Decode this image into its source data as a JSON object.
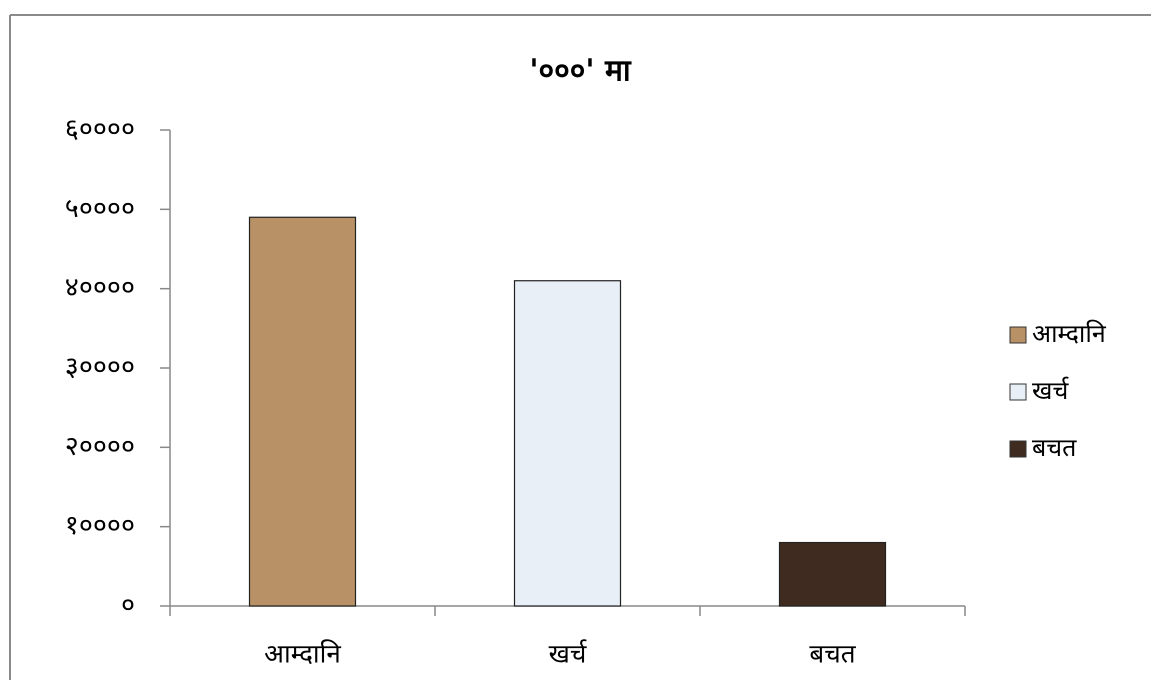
{
  "chart_data": {
    "type": "bar",
    "title": "'०००' मा",
    "categories": [
      "आम्दानि",
      "खर्च",
      "बचत"
    ],
    "series": [
      {
        "name": "आम्दानि",
        "color": "#b89266",
        "values": [
          49000,
          null,
          null
        ]
      },
      {
        "name": "खर्च",
        "color": "#e9eff6",
        "values": [
          null,
          41000,
          null
        ]
      },
      {
        "name": "बचत",
        "color": "#3f2b1f",
        "values": [
          null,
          null,
          8000
        ]
      }
    ],
    "ylim": [
      0,
      60000
    ],
    "yticks": [
      {
        "value": 0,
        "label": "०"
      },
      {
        "value": 10000,
        "label": "१००००"
      },
      {
        "value": 20000,
        "label": "२००००"
      },
      {
        "value": 30000,
        "label": "३००००"
      },
      {
        "value": 40000,
        "label": "४००००"
      },
      {
        "value": 50000,
        "label": "५००००"
      },
      {
        "value": 60000,
        "label": "६००००"
      }
    ],
    "grid": false,
    "legend": "right"
  }
}
